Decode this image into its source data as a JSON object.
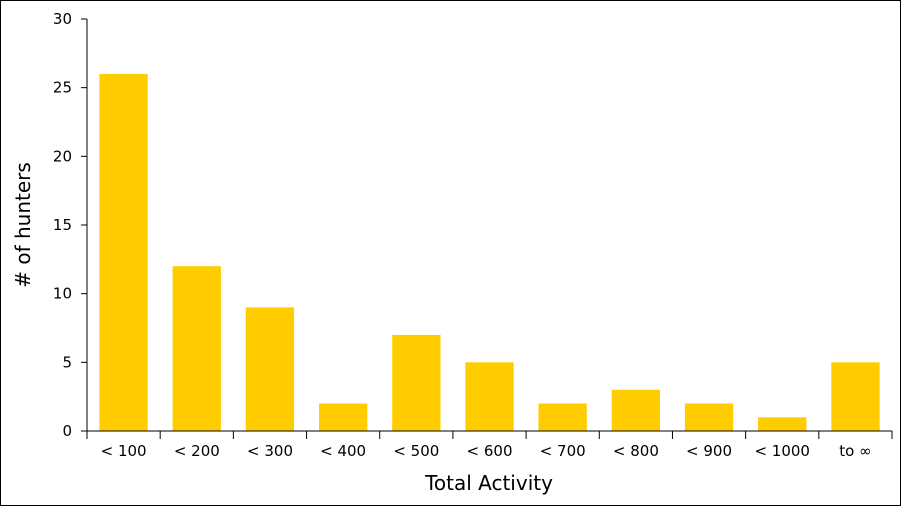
{
  "chart_data": {
    "type": "bar",
    "categories": [
      "< 100",
      "< 200",
      "< 300",
      "< 400",
      "< 500",
      "< 600",
      "< 700",
      "< 800",
      "< 900",
      "< 1000",
      "to ∞"
    ],
    "values": [
      26,
      12,
      9,
      2,
      7,
      5,
      2,
      3,
      2,
      1,
      5
    ],
    "xlabel": "Total Activity",
    "ylabel": "# of hunters",
    "ylim": [
      0,
      30
    ],
    "yticks": [
      0,
      5,
      10,
      15,
      20,
      25,
      30
    ],
    "grid": false,
    "bar_color": "#ffcc00"
  }
}
